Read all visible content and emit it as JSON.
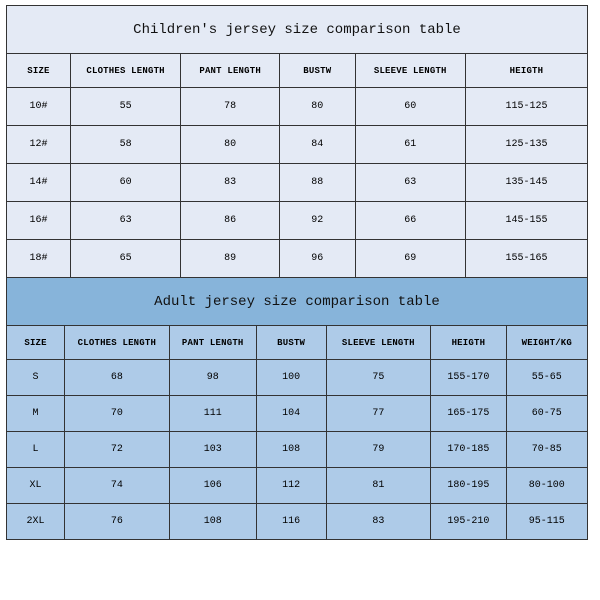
{
  "colors": {
    "border": "#333333",
    "bg_light": "#e4eaf5",
    "bg_mid": "#aecbe8",
    "bg_dark": "#87b4da",
    "text": "#111111"
  },
  "children": {
    "title": "Children's jersey size comparison table",
    "columns": [
      "SIZE",
      "CLOTHES LENGTH",
      "PANT LENGTH",
      "BUSTW",
      "SLEEVE LENGTH",
      "HEIGTH"
    ],
    "col_widths_pct": [
      11,
      19,
      17,
      13,
      19,
      21
    ],
    "rows": [
      [
        "10#",
        "55",
        "78",
        "80",
        "60",
        "115-125"
      ],
      [
        "12#",
        "58",
        "80",
        "84",
        "61",
        "125-135"
      ],
      [
        "14#",
        "60",
        "83",
        "88",
        "63",
        "135-145"
      ],
      [
        "16#",
        "63",
        "86",
        "92",
        "66",
        "145-155"
      ],
      [
        "18#",
        "65",
        "89",
        "96",
        "69",
        "155-165"
      ]
    ]
  },
  "adult": {
    "title": "Adult jersey size comparison table",
    "columns": [
      "SIZE",
      "CLOTHES LENGTH",
      "PANT LENGTH",
      "BUSTW",
      "SLEEVE LENGTH",
      "HEIGTH",
      "WEIGHT/KG"
    ],
    "col_widths_pct": [
      10,
      18,
      15,
      12,
      18,
      13,
      14
    ],
    "rows": [
      [
        "S",
        "68",
        "98",
        "100",
        "75",
        "155-170",
        "55-65"
      ],
      [
        "M",
        "70",
        "111",
        "104",
        "77",
        "165-175",
        "60-75"
      ],
      [
        "L",
        "72",
        "103",
        "108",
        "79",
        "170-185",
        "70-85"
      ],
      [
        "XL",
        "74",
        "106",
        "112",
        "81",
        "180-195",
        "80-100"
      ],
      [
        "2XL",
        "76",
        "108",
        "116",
        "83",
        "195-210",
        "95-115"
      ]
    ]
  }
}
